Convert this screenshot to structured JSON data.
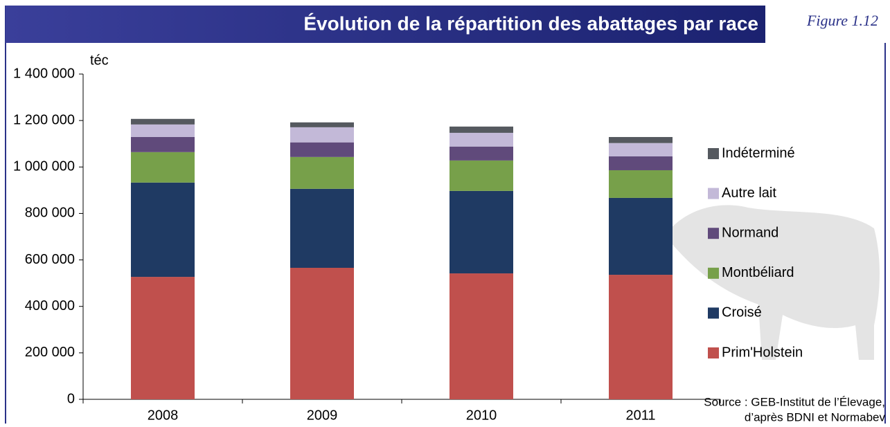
{
  "chart_data": {
    "type": "stacked-bar",
    "title": "Évolution de la répartition des abattages par race",
    "figure_label": "Figure 1.12",
    "y_label": "téc",
    "source": [
      "Source : GEB-Institut de l’Élevage,",
      "d’après BDNI et Normabev"
    ],
    "categories": [
      "2008",
      "2009",
      "2010",
      "2011"
    ],
    "series": [
      {
        "name": "Prim'Holstein",
        "color": "#c0504d",
        "values": [
          527000,
          566000,
          542000,
          536000
        ]
      },
      {
        "name": "Croisé",
        "color": "#1f3a63",
        "values": [
          406000,
          340000,
          355000,
          331000
        ]
      },
      {
        "name": "Montbéliard",
        "color": "#77a04a",
        "values": [
          131000,
          137000,
          131000,
          119000
        ]
      },
      {
        "name": "Normand",
        "color": "#604a7b",
        "values": [
          65000,
          63000,
          60000,
          60000
        ]
      },
      {
        "name": "Autre lait",
        "color": "#c3b9d8",
        "values": [
          54000,
          65000,
          59000,
          57000
        ]
      },
      {
        "name": "Indéterminé",
        "color": "#55595f",
        "values": [
          24000,
          21000,
          27000,
          26000
        ]
      }
    ],
    "ylim": [
      0,
      1400000
    ],
    "yticks": [
      0,
      {
        "value": 200000,
        "label": "200 000"
      },
      {
        "value": 400000,
        "label": "400 000"
      },
      {
        "value": 600000,
        "label": "600 000"
      },
      {
        "value": 800000,
        "label": "800 000"
      },
      {
        "value": 1000000,
        "label": "1 000 000"
      },
      {
        "value": 1200000,
        "label": "1 200 000"
      },
      {
        "value": 1400000,
        "label": "1 400 000"
      }
    ],
    "legend": "right"
  }
}
